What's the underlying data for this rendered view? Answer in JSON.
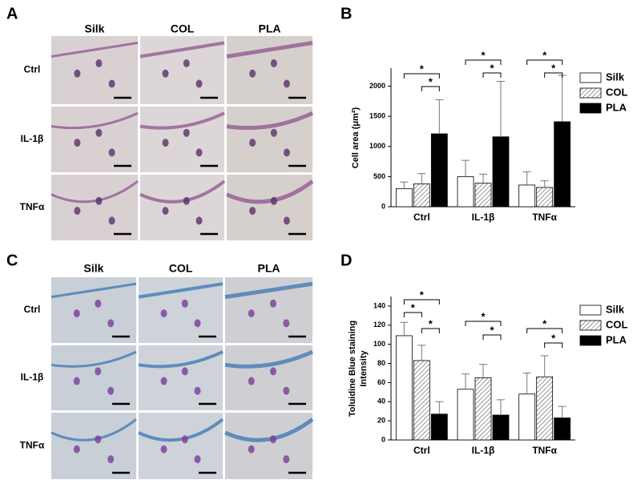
{
  "panels": [
    {
      "label": "A",
      "columns": [
        "Silk",
        "COL",
        "PLA"
      ],
      "rows": [
        "Ctrl",
        "IL-1β",
        "TNFα"
      ]
    },
    {
      "label": "C",
      "columns": [
        "Silk",
        "COL",
        "PLA"
      ],
      "rows": [
        "Ctrl",
        "IL-1β",
        "TNFα"
      ]
    }
  ],
  "chart_data": [
    {
      "type": "bar",
      "panel": "B",
      "ylabel": [
        "Cell area (μm²)"
      ],
      "categories": [
        "Ctrl",
        "IL-1β",
        "TNFα"
      ],
      "series": [
        {
          "name": "Silk",
          "color": "#ffffff",
          "values": [
            300,
            500,
            360
          ],
          "errors": [
            110,
            270,
            220
          ]
        },
        {
          "name": "COL",
          "color": "#ffffff",
          "hatch": true,
          "values": [
            380,
            390,
            320
          ],
          "errors": [
            170,
            150,
            110
          ]
        },
        {
          "name": "PLA",
          "color": "#000000",
          "values": [
            1210,
            1160,
            1410
          ],
          "errors": [
            565,
            920,
            770
          ]
        }
      ],
      "ylim": [
        0,
        2300
      ],
      "yticks": [
        0,
        500,
        1000,
        1500,
        2000
      ],
      "annotations": [
        "*",
        "*",
        "*",
        "*",
        "*",
        "*"
      ],
      "legend": "right"
    },
    {
      "type": "bar",
      "panel": "D",
      "ylabel": [
        "Toluidine Blue staining",
        "Intensity"
      ],
      "categories": [
        "Ctrl",
        "IL-1β",
        "TNFα"
      ],
      "series": [
        {
          "name": "Silk",
          "color": "#ffffff",
          "values": [
            109,
            53,
            48
          ],
          "errors": [
            14,
            16,
            22
          ]
        },
        {
          "name": "COL",
          "color": "#ffffff",
          "hatch": true,
          "values": [
            83,
            65,
            66
          ],
          "errors": [
            16,
            14,
            22
          ]
        },
        {
          "name": "PLA",
          "color": "#000000",
          "values": [
            27,
            26,
            23
          ],
          "errors": [
            13,
            16,
            12
          ]
        }
      ],
      "ylim": [
        0,
        150
      ],
      "yticks": [
        0,
        20,
        40,
        60,
        80,
        100,
        120,
        140
      ],
      "annotations": [
        "*",
        "*",
        "*",
        "*",
        "*",
        "*",
        "*"
      ],
      "legend": "right"
    }
  ]
}
